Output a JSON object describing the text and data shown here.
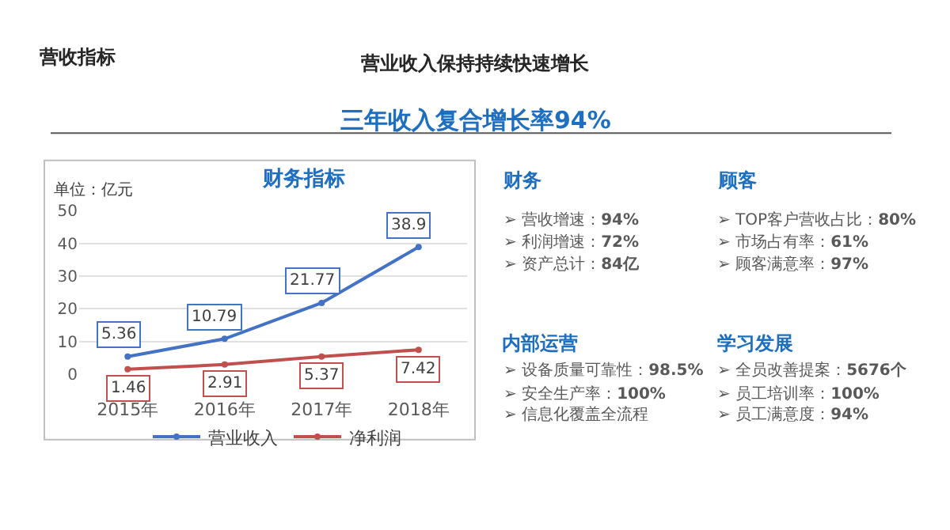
{
  "chart_data": [
    {
      "type": "line",
      "title": "财务指标",
      "annotations": [
        "单位：亿元"
      ],
      "categories": [
        "2015年",
        "2016年",
        "2017年",
        "2018年"
      ],
      "series": [
        {
          "name": "营业收入",
          "color": "#4472c4",
          "values": [
            5.36,
            10.79,
            21.77,
            38.9
          ]
        },
        {
          "name": "净利润",
          "color": "#c0504d",
          "values": [
            1.46,
            2.91,
            5.37,
            7.42
          ]
        }
      ],
      "ylim": [
        0,
        50
      ],
      "yticks": [
        0,
        10,
        20,
        30,
        40,
        50
      ],
      "grid": "y",
      "legend": "bottom",
      "marker": "circle",
      "line_style": "solid",
      "data_labels": true
    },
    {
      "type": "other",
      "annotations": [
        "营收指标",
        "营业收入保持持续快速增长",
        "三年收入复合增长率94%",
        "财务",
        "➢ 营收增速：94%",
        "➢ 利润增速：72%",
        "➢ 资产总计：84亿",
        "顾客",
        "➢ TOP客户营收占比：80%",
        "➢ 市场占有率：61%",
        "➢ 顾客满意率：97%",
        "内部运营",
        "➢ 设备质量可靠性：98.5%",
        "➢ 安全生产率：100%",
        "➢ 信息化覆盖全流程",
        "学习发展",
        "➢ 全员改善提案：5676个",
        "➢ 员工培训率：100%",
        "➢ 员工满意度：94%"
      ]
    }
  ]
}
